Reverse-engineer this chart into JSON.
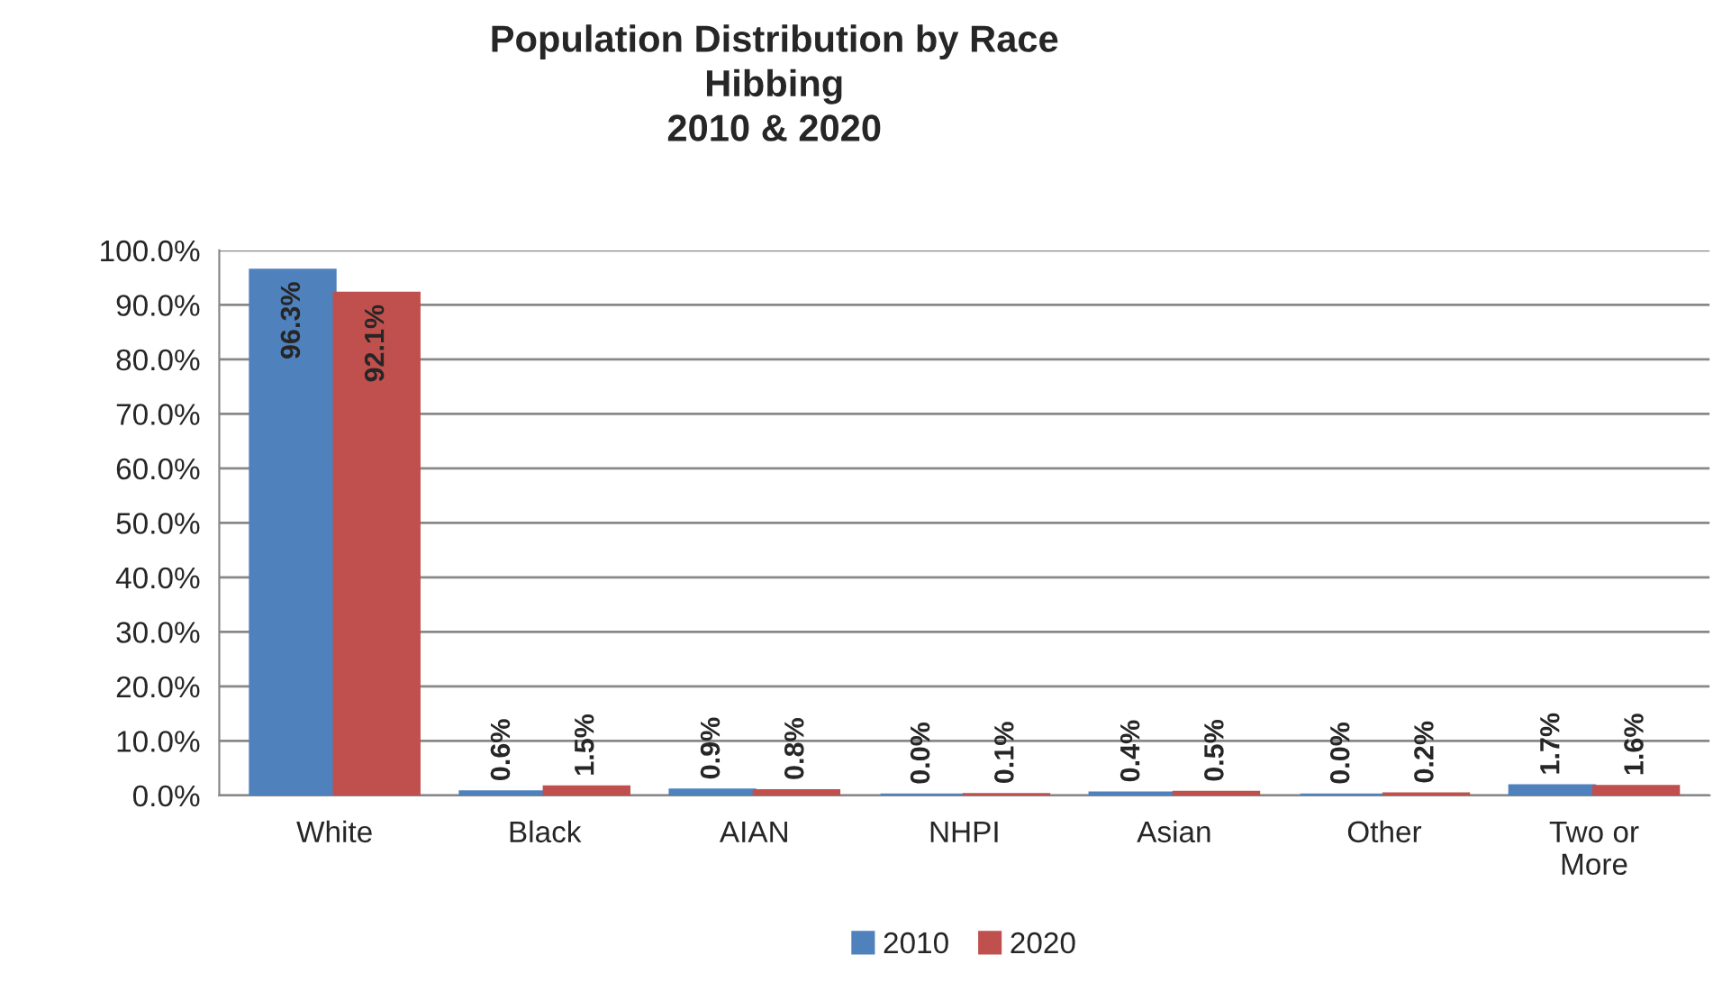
{
  "chart_data": {
    "type": "bar",
    "title": "Population Distribution by Race\nHibbing\n2010 & 2020",
    "categories": [
      "White",
      "Black",
      "AIAN",
      "NHPI",
      "Asian",
      "Other",
      "Two or\nMore"
    ],
    "series": [
      {
        "name": "2010",
        "color": "#4f81bd",
        "values": [
          96.3,
          0.6,
          0.9,
          0.0,
          0.4,
          0.0,
          1.7
        ],
        "value_labels": [
          "96.3%",
          "0.6%",
          "0.9%",
          "0.0%",
          "0.4%",
          "0.0%",
          "1.7%"
        ]
      },
      {
        "name": "2020",
        "color": "#c0504d",
        "values": [
          92.1,
          1.5,
          0.8,
          0.1,
          0.5,
          0.2,
          1.6
        ],
        "value_labels": [
          "92.1%",
          "1.5%",
          "0.8%",
          "0.1%",
          "0.5%",
          "0.2%",
          "1.6%"
        ]
      }
    ],
    "ylim": [
      0,
      100
    ],
    "yticks": [
      {
        "value": 0,
        "label": "0.0%"
      },
      {
        "value": 10,
        "label": "10.0%"
      },
      {
        "value": 20,
        "label": "20.0%"
      },
      {
        "value": 30,
        "label": "30.0%"
      },
      {
        "value": 40,
        "label": "40.0%"
      },
      {
        "value": 50,
        "label": "50.0%"
      },
      {
        "value": 60,
        "label": "60.0%"
      },
      {
        "value": 70,
        "label": "70.0%"
      },
      {
        "value": 80,
        "label": "80.0%"
      },
      {
        "value": 90,
        "label": "90.0%"
      },
      {
        "value": 100,
        "label": "100.0%"
      }
    ],
    "grid": "y",
    "legend": "bottom"
  }
}
